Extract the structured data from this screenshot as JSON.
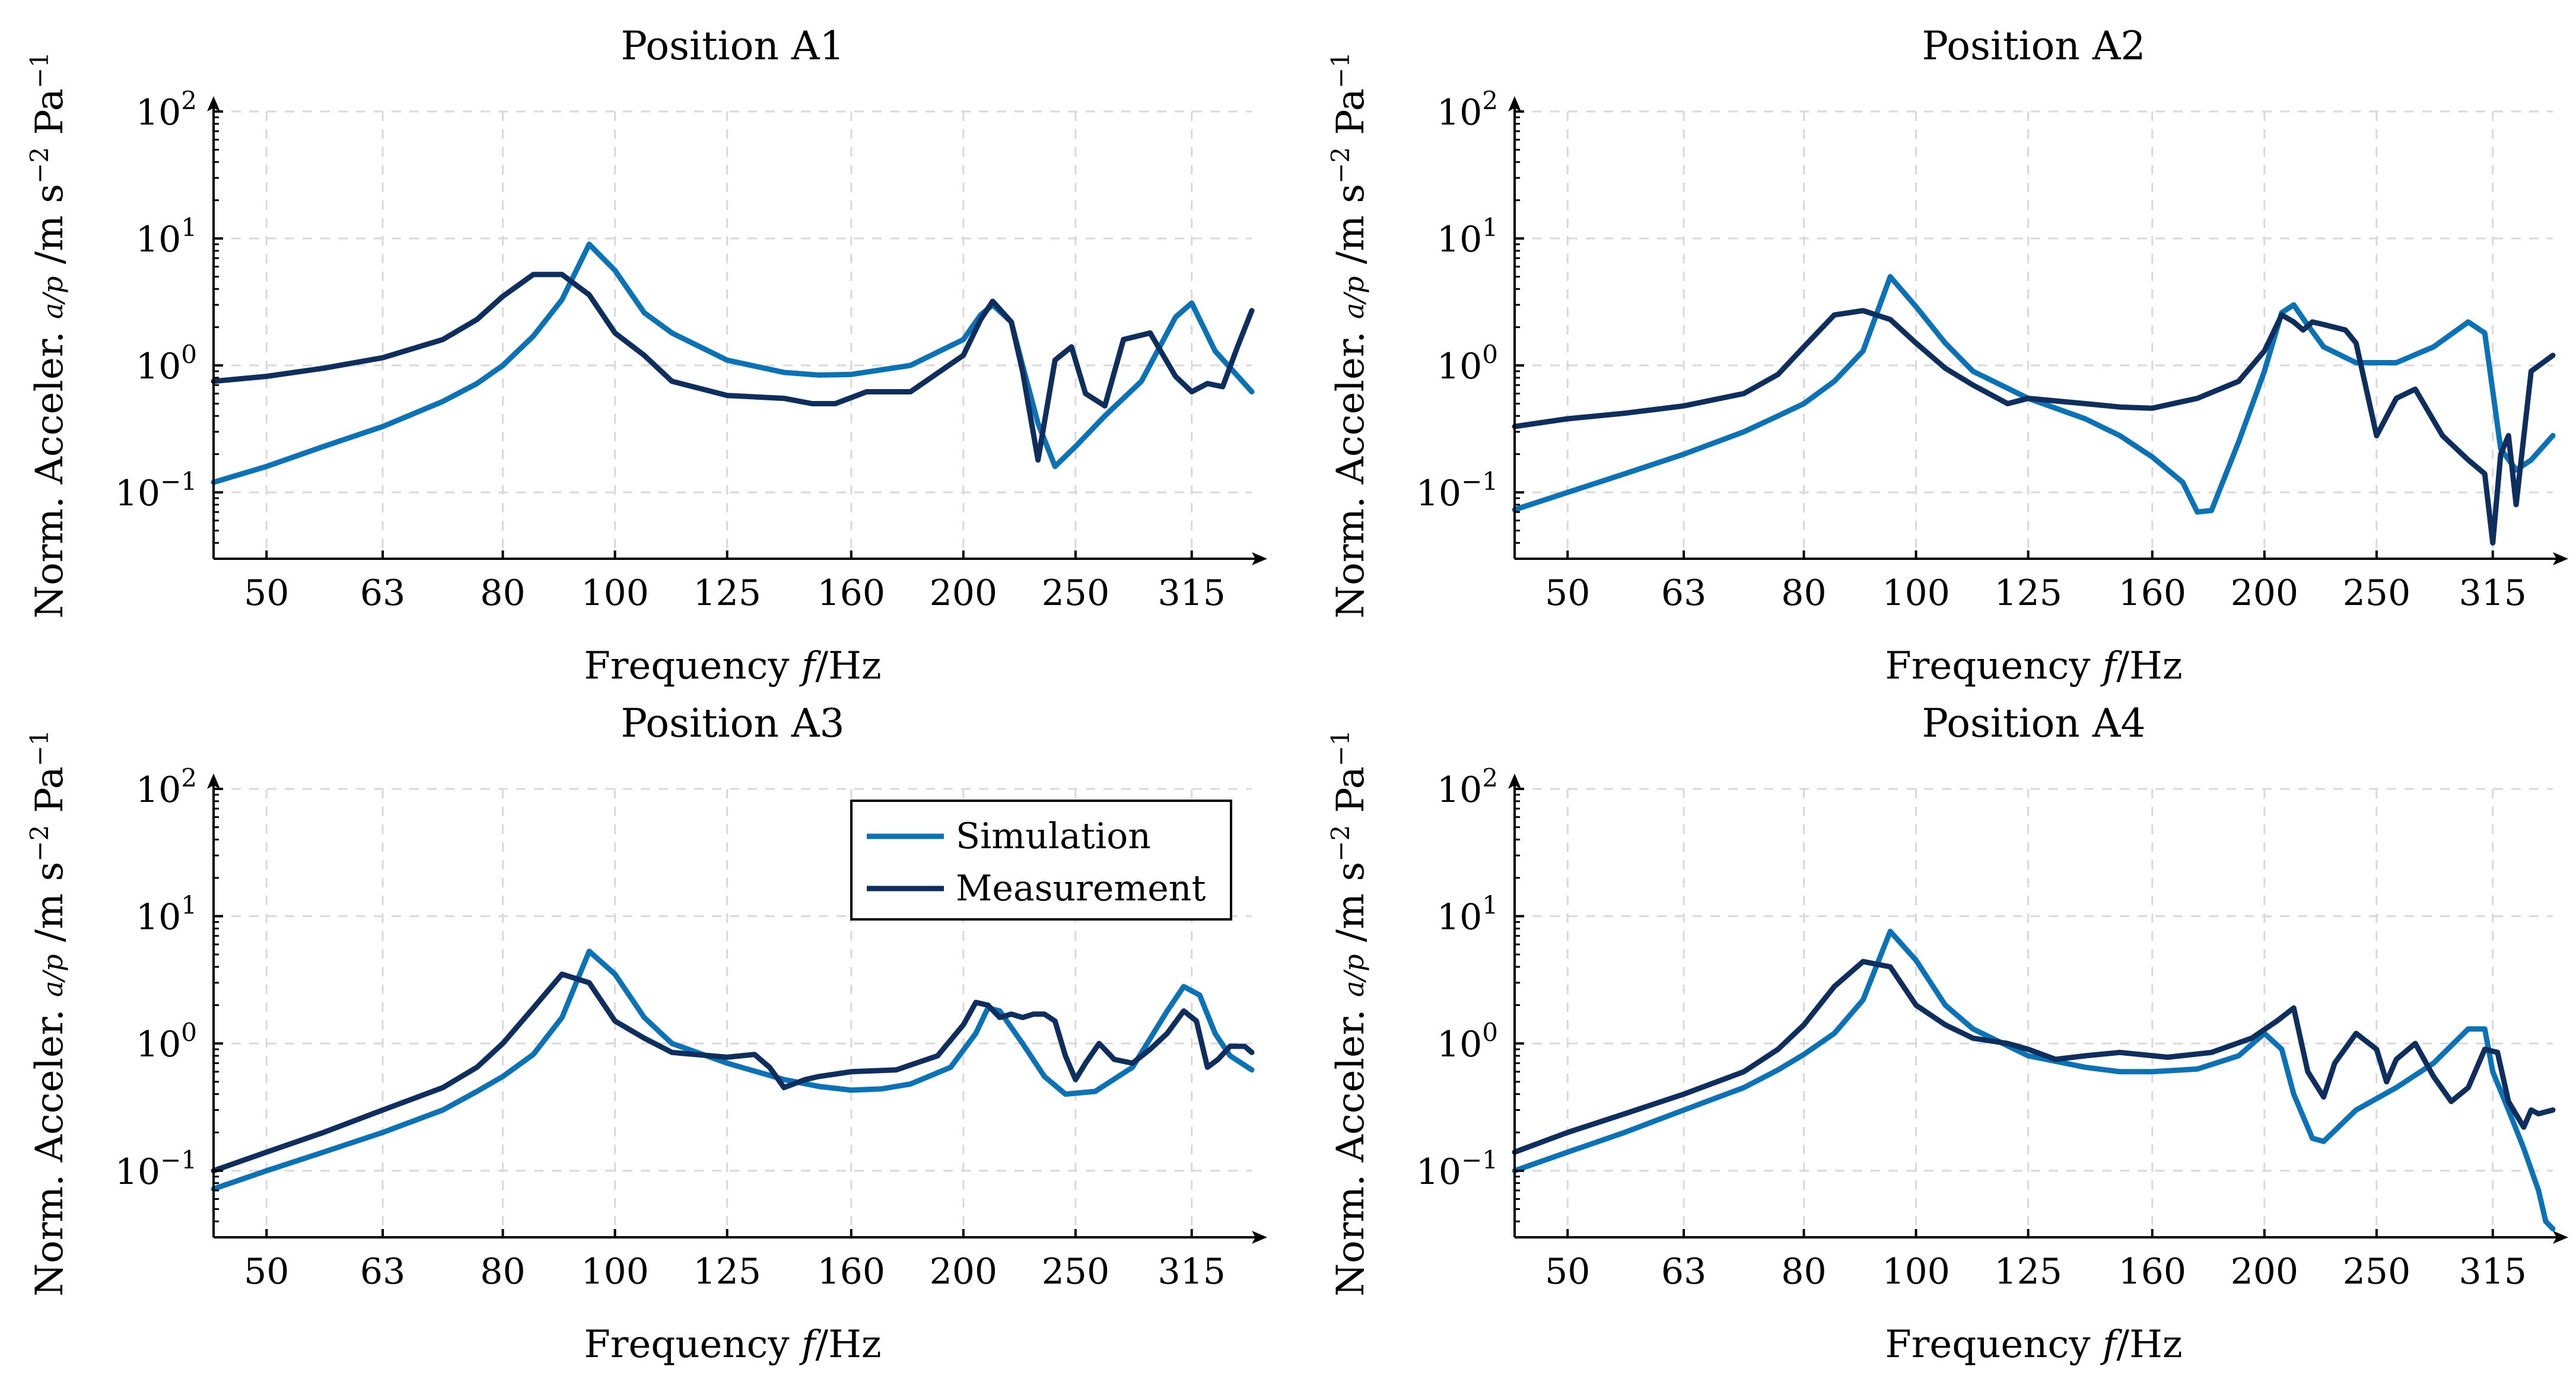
{
  "colors": {
    "simulation": "#0b72b6",
    "measurement": "#0e2f5e",
    "grid": "#d9d9d9"
  },
  "chart_data": [
    {
      "type": "line",
      "title": "Position A1",
      "xlabel": "Frequency f/Hz",
      "ylabel": "Norm. Acceler. a/p / m s^-2 Pa^-1",
      "xscale": "log",
      "yscale": "log",
      "xlim": [
        45,
        355
      ],
      "ylim": [
        0.03,
        100
      ],
      "xticks": [
        "50",
        "63",
        "80",
        "100",
        "125",
        "160",
        "200",
        "250",
        "315"
      ],
      "ylegend": [
        "10^-1",
        "10^0",
        "10^1",
        "10^2"
      ],
      "grid": true,
      "series": [
        {
          "name": "Simulation",
          "x": [
            45,
            50,
            56,
            63,
            71,
            76,
            80,
            85,
            90,
            95,
            100,
            106,
            112,
            125,
            140,
            150,
            160,
            180,
            200,
            207,
            212,
            220,
            225,
            232,
            240,
            250,
            265,
            285,
            305,
            315,
            330,
            355
          ],
          "y": [
            0.12,
            0.16,
            0.23,
            0.33,
            0.52,
            0.72,
            1.0,
            1.7,
            3.3,
            9.0,
            5.6,
            2.6,
            1.8,
            1.1,
            0.88,
            0.84,
            0.85,
            1.0,
            1.6,
            2.5,
            3.0,
            2.2,
            1.0,
            0.35,
            0.16,
            0.23,
            0.4,
            0.75,
            2.4,
            3.1,
            1.3,
            0.62
          ]
        },
        {
          "name": "Measurement",
          "x": [
            45,
            50,
            56,
            63,
            71,
            76,
            80,
            85,
            90,
            95,
            100,
            106,
            112,
            125,
            140,
            148,
            155,
            165,
            180,
            200,
            207,
            212,
            220,
            225,
            232,
            240,
            248,
            255,
            265,
            275,
            290,
            305,
            315,
            325,
            335,
            345,
            355
          ],
          "y": [
            0.75,
            0.82,
            0.95,
            1.15,
            1.6,
            2.3,
            3.5,
            5.2,
            5.2,
            3.6,
            1.8,
            1.2,
            0.75,
            0.58,
            0.55,
            0.5,
            0.5,
            0.62,
            0.62,
            1.2,
            2.3,
            3.2,
            2.2,
            0.9,
            0.18,
            1.1,
            1.4,
            0.6,
            0.48,
            1.6,
            1.8,
            0.82,
            0.62,
            0.72,
            0.68,
            1.4,
            2.7
          ]
        }
      ]
    },
    {
      "type": "line",
      "title": "Position A2",
      "xlabel": "Frequency f/Hz",
      "ylabel": "Norm. Acceler. a/p / m s^-2 Pa^-1",
      "xscale": "log",
      "yscale": "log",
      "xlim": [
        45,
        355
      ],
      "ylim": [
        0.03,
        100
      ],
      "xticks": [
        "50",
        "63",
        "80",
        "100",
        "125",
        "160",
        "200",
        "250",
        "315"
      ],
      "ylegend": [
        "10^-1",
        "10^0",
        "10^1",
        "10^2"
      ],
      "grid": true,
      "series": [
        {
          "name": "Simulation",
          "x": [
            45,
            50,
            56,
            63,
            71,
            76,
            80,
            85,
            90,
            95,
            100,
            106,
            112,
            125,
            140,
            150,
            160,
            170,
            175,
            180,
            190,
            200,
            207,
            212,
            217,
            225,
            240,
            260,
            280,
            300,
            310,
            320,
            330,
            340,
            355
          ],
          "y": [
            0.073,
            0.1,
            0.14,
            0.2,
            0.3,
            0.4,
            0.5,
            0.75,
            1.3,
            5.0,
            2.9,
            1.5,
            0.9,
            0.55,
            0.38,
            0.28,
            0.19,
            0.12,
            0.07,
            0.072,
            0.25,
            0.9,
            2.6,
            3.0,
            2.2,
            1.4,
            1.05,
            1.05,
            1.4,
            2.2,
            1.8,
            0.22,
            0.15,
            0.18,
            0.28
          ]
        },
        {
          "name": "Measurement",
          "x": [
            45,
            50,
            56,
            63,
            71,
            76,
            80,
            85,
            90,
            95,
            100,
            106,
            112,
            120,
            125,
            140,
            150,
            160,
            175,
            190,
            200,
            207,
            212,
            216,
            220,
            225,
            235,
            240,
            250,
            260,
            270,
            285,
            300,
            310,
            315,
            320,
            325,
            330,
            340,
            355
          ],
          "y": [
            0.33,
            0.38,
            0.42,
            0.48,
            0.6,
            0.85,
            1.4,
            2.5,
            2.7,
            2.3,
            1.5,
            0.95,
            0.7,
            0.5,
            0.55,
            0.5,
            0.47,
            0.46,
            0.55,
            0.75,
            1.3,
            2.5,
            2.2,
            1.9,
            2.2,
            2.1,
            1.9,
            1.5,
            0.28,
            0.55,
            0.65,
            0.28,
            0.18,
            0.14,
            0.04,
            0.2,
            0.28,
            0.08,
            0.9,
            1.2
          ]
        }
      ]
    },
    {
      "type": "line",
      "title": "Position A3",
      "xlabel": "Frequency f/Hz",
      "ylabel": "Norm. Acceler. a/p / m s^-2 Pa^-1",
      "xscale": "log",
      "yscale": "log",
      "xlim": [
        45,
        355
      ],
      "ylim": [
        0.03,
        100
      ],
      "xticks": [
        "50",
        "63",
        "80",
        "100",
        "125",
        "160",
        "200",
        "250",
        "315"
      ],
      "ylegend": [
        "10^-1",
        "10^0",
        "10^1",
        "10^2"
      ],
      "grid": true,
      "legend": {
        "position": "top-right",
        "entries": [
          "Simulation",
          "Measurement"
        ]
      },
      "series": [
        {
          "name": "Simulation",
          "x": [
            45,
            50,
            56,
            63,
            71,
            76,
            80,
            85,
            90,
            95,
            100,
            106,
            112,
            125,
            140,
            150,
            160,
            170,
            180,
            195,
            205,
            210,
            215,
            225,
            235,
            245,
            260,
            280,
            300,
            310,
            320,
            330,
            340,
            355
          ],
          "y": [
            0.072,
            0.1,
            0.14,
            0.2,
            0.3,
            0.42,
            0.55,
            0.82,
            1.6,
            5.3,
            3.5,
            1.6,
            1.0,
            0.7,
            0.52,
            0.46,
            0.43,
            0.44,
            0.48,
            0.65,
            1.2,
            1.9,
            1.8,
            1.0,
            0.55,
            0.4,
            0.42,
            0.65,
            1.8,
            2.8,
            2.4,
            1.2,
            0.8,
            0.62
          ]
        },
        {
          "name": "Measurement",
          "x": [
            45,
            50,
            56,
            63,
            71,
            76,
            80,
            85,
            90,
            95,
            100,
            106,
            112,
            125,
            132,
            136,
            140,
            146,
            150,
            160,
            175,
            190,
            200,
            205,
            210,
            215,
            220,
            225,
            230,
            235,
            240,
            245,
            250,
            255,
            262,
            270,
            280,
            290,
            300,
            310,
            318,
            325,
            332,
            340,
            350,
            355
          ],
          "y": [
            0.1,
            0.14,
            0.2,
            0.3,
            0.45,
            0.65,
            1.0,
            1.9,
            3.5,
            3.0,
            1.5,
            1.1,
            0.85,
            0.78,
            0.82,
            0.65,
            0.45,
            0.52,
            0.55,
            0.6,
            0.62,
            0.8,
            1.4,
            2.1,
            2.0,
            1.6,
            1.7,
            1.6,
            1.7,
            1.7,
            1.5,
            0.8,
            0.52,
            0.7,
            1.0,
            0.75,
            0.7,
            0.9,
            1.2,
            1.8,
            1.5,
            0.65,
            0.75,
            0.95,
            0.95,
            0.85
          ]
        }
      ]
    },
    {
      "type": "line",
      "title": "Position A4",
      "xlabel": "Frequency f/Hz",
      "ylabel": "Norm. Acceler. a/p / m s^-2 Pa^-1",
      "xscale": "log",
      "yscale": "log",
      "xlim": [
        45,
        355
      ],
      "ylim": [
        0.03,
        100
      ],
      "xticks": [
        "50",
        "63",
        "80",
        "100",
        "125",
        "160",
        "200",
        "250",
        "315"
      ],
      "ylegend": [
        "10^-1",
        "10^0",
        "10^1",
        "10^2"
      ],
      "grid": true,
      "series": [
        {
          "name": "Simulation",
          "x": [
            45,
            50,
            56,
            63,
            71,
            76,
            80,
            85,
            90,
            95,
            100,
            106,
            112,
            125,
            140,
            150,
            160,
            175,
            190,
            200,
            207,
            212,
            220,
            225,
            240,
            260,
            280,
            300,
            310,
            315,
            325,
            335,
            345,
            350,
            355
          ],
          "y": [
            0.1,
            0.14,
            0.2,
            0.3,
            0.45,
            0.62,
            0.82,
            1.2,
            2.2,
            7.6,
            4.5,
            2.0,
            1.3,
            0.8,
            0.65,
            0.6,
            0.6,
            0.63,
            0.8,
            1.2,
            0.9,
            0.4,
            0.18,
            0.17,
            0.3,
            0.45,
            0.7,
            1.3,
            1.3,
            0.6,
            0.3,
            0.15,
            0.07,
            0.04,
            0.035
          ]
        },
        {
          "name": "Measurement",
          "x": [
            45,
            50,
            56,
            63,
            71,
            76,
            80,
            85,
            90,
            95,
            100,
            106,
            112,
            120,
            125,
            132,
            140,
            150,
            165,
            180,
            195,
            205,
            212,
            218,
            225,
            230,
            240,
            250,
            255,
            260,
            270,
            280,
            290,
            300,
            310,
            318,
            325,
            335,
            340,
            345,
            355
          ],
          "y": [
            0.14,
            0.2,
            0.28,
            0.4,
            0.6,
            0.9,
            1.4,
            2.8,
            4.4,
            4.0,
            2.0,
            1.4,
            1.1,
            1.0,
            0.9,
            0.75,
            0.8,
            0.85,
            0.78,
            0.85,
            1.1,
            1.5,
            1.9,
            0.6,
            0.38,
            0.7,
            1.2,
            0.9,
            0.5,
            0.75,
            1.0,
            0.55,
            0.35,
            0.45,
            0.9,
            0.85,
            0.35,
            0.22,
            0.3,
            0.28,
            0.3
          ]
        }
      ]
    }
  ]
}
